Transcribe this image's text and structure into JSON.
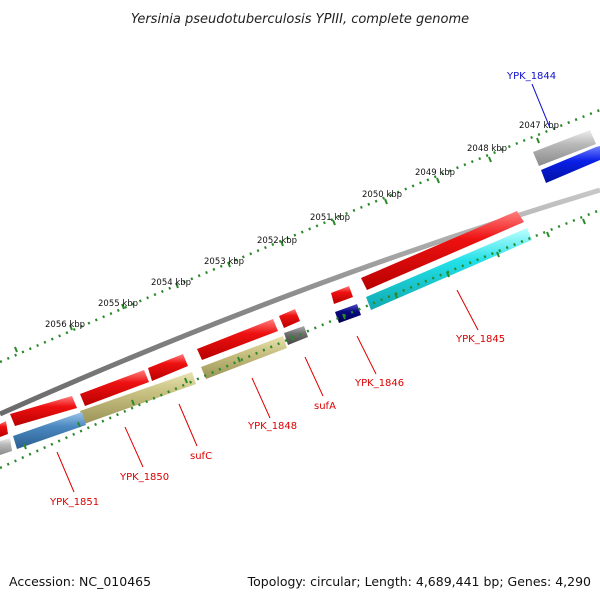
{
  "title": "Yersinia pseudotuberculosis YPIII, complete genome",
  "footer": {
    "accession": "Accession: NC_010465",
    "summary": "Topology: circular; Length: 4,689,441 bp; Genes: 4,290"
  },
  "ticks": [
    "2047 kbp",
    "2048 kbp",
    "2049 kbp",
    "2050 kbp",
    "2051 kbp",
    "2052 kbp",
    "2053 kbp",
    "2054 kbp",
    "2055 kbp",
    "2056 kbp"
  ],
  "gene_labels": [
    {
      "text": "YPK_1844",
      "color": "#1010cc"
    },
    {
      "text": "YPK_1845",
      "color": "#dd0000"
    },
    {
      "text": "YPK_1846",
      "color": "#dd0000"
    },
    {
      "text": "sufA",
      "color": "#dd0000"
    },
    {
      "text": "YPK_1848",
      "color": "#dd0000"
    },
    {
      "text": "sufC",
      "color": "#dd0000"
    },
    {
      "text": "YPK_1850",
      "color": "#dd0000"
    },
    {
      "text": "YPK_1851",
      "color": "#dd0000"
    }
  ],
  "colors": {
    "backbone": "#8a8a8a",
    "tick_marks": "#2a8a2a",
    "cds_red": "#ee1111",
    "olive": "#c8c080",
    "steel_blue": "#4a88c0",
    "cyan": "#22e0e8",
    "navy": "#0a0a80",
    "blue": "#0a20e8",
    "grey": "#b8b8b8"
  }
}
